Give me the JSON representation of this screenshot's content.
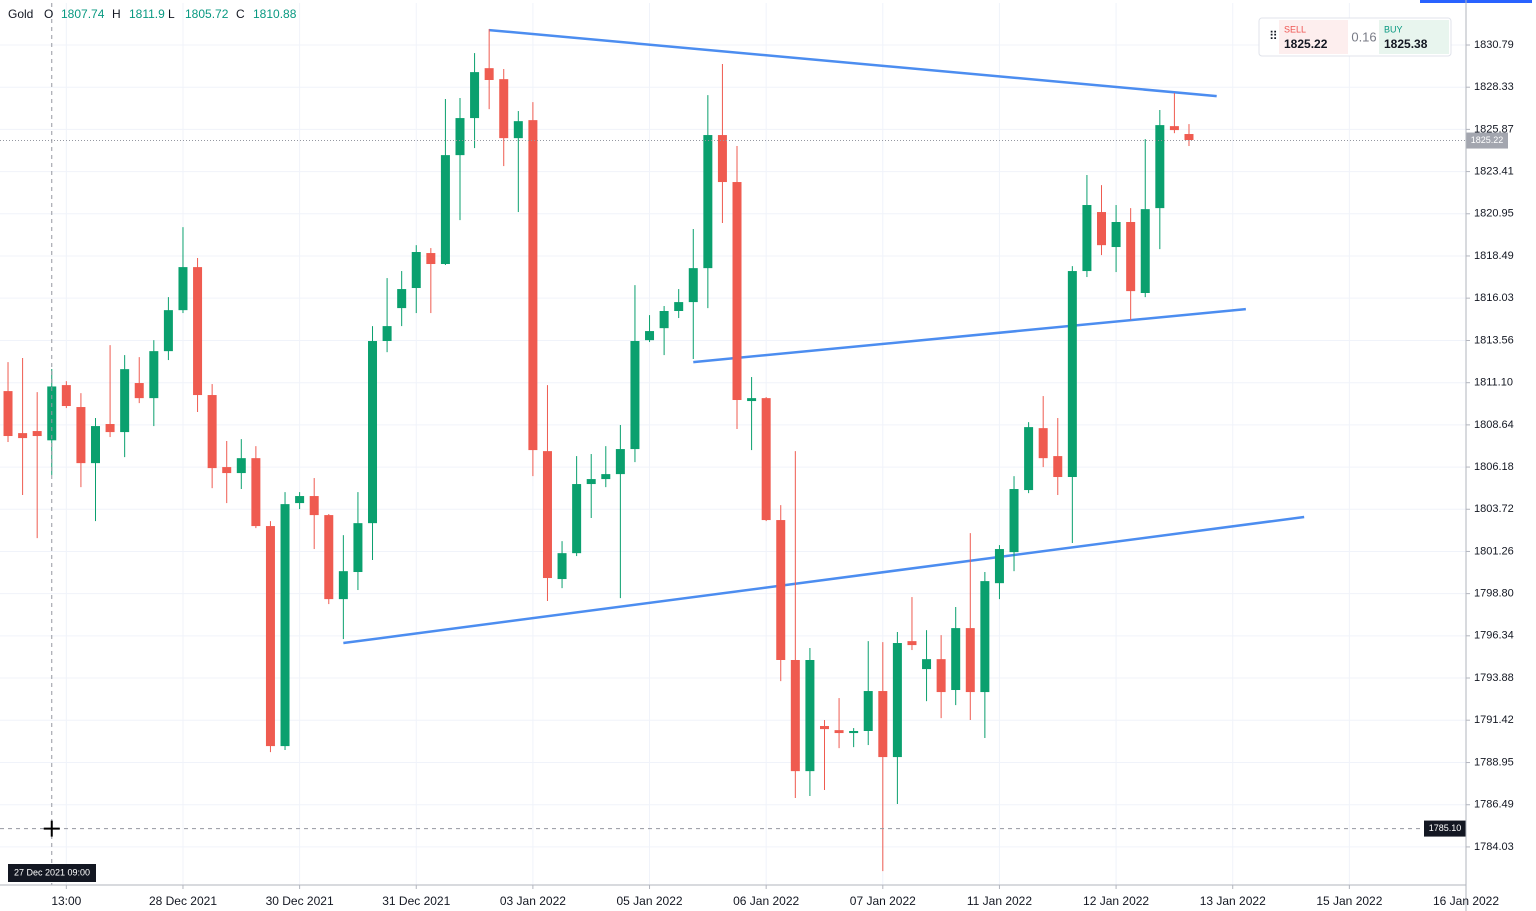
{
  "chart_data": {
    "type": "candlestick",
    "ohlc_legend": {
      "symbol": "Gold",
      "items": [
        {
          "key": "O",
          "value": 1807.74
        },
        {
          "key": "H",
          "value": 1811.9
        },
        {
          "key": "L",
          "value": 1805.72
        },
        {
          "key": "C",
          "value": 1810.88
        }
      ]
    },
    "open": [
      1810.61,
      1808.16,
      1808.28,
      1807.74,
      1810.96,
      1809.68,
      1806.41,
      1808.69,
      1808.22,
      1811.08,
      1810.2,
      1812.94,
      1815.33,
      1817.84,
      1810.38,
      1806.18,
      1805.83,
      1806.7,
      1802.74,
      1789.91,
      1804.08,
      1804.49,
      1803.38,
      1798.48,
      1800.06,
      1802.91,
      1813.53,
      1815.45,
      1816.62,
      1818.66,
      1818.02,
      1824.37,
      1826.53,
      1829.44,
      1828.8,
      1825.36,
      1826.41,
      1807.11,
      1799.65,
      1801.16,
      1805.19,
      1805.48,
      1805.77,
      1807.23,
      1813.58,
      1814.28,
      1815.28,
      1815.8,
      1817.78,
      1825.54,
      1822.8,
      1810.03,
      1810.2,
      1803.09,
      1794.93,
      1788.45,
      1791.08,
      1790.84,
      1790.67,
      1790.79,
      1793.12,
      1789.27,
      1796.03,
      1794.4,
      1794.98,
      1793.18,
      1796.79,
      1793.06,
      1799.41,
      1801.22,
      1804.84,
      1808.45,
      1806.82,
      1805.6,
      1817.61,
      1821.05,
      1819.01,
      1820.47,
      1816.33,
      1821.28,
      1826.06,
      1825.6
    ],
    "high": [
      1812.3,
      1812.54,
      1810.55,
      1811.9,
      1811.19,
      1810.49,
      1809.04,
      1813.29,
      1812.71,
      1812.59,
      1813.58,
      1816.09,
      1820.17,
      1818.37,
      1811.02,
      1807.7,
      1807.81,
      1807.4,
      1803.03,
      1804.72,
      1804.72,
      1805.54,
      1803.44,
      1802.21,
      1804.72,
      1814.4,
      1817.2,
      1817.61,
      1819.12,
      1818.95,
      1827.64,
      1827.7,
      1830.32,
      1831.72,
      1829.39,
      1826.94,
      1827.46,
      1810.96,
      1801.86,
      1806.82,
      1806.94,
      1807.4,
      1808.63,
      1816.79,
      1815.04,
      1815.57,
      1816.56,
      1820.06,
      1827.87,
      1829.68,
      1824.9,
      1811.43,
      1810.26,
      1803.96,
      1807.11,
      1795.63,
      1791.43,
      1792.71,
      1790.96,
      1796.03,
      1795.97,
      1796.56,
      1798.6,
      1796.67,
      1796.38,
      1798.02,
      1802.33,
      1800.06,
      1801.63,
      1805.65,
      1808.8,
      1810.32,
      1809.04,
      1817.9,
      1823.21,
      1822.62,
      1821.46,
      1821.28,
      1825.3,
      1827.0,
      1827.99,
      1826.18
    ],
    "low": [
      1807.64,
      1804.55,
      1802.04,
      1805.72,
      1809.62,
      1805.01,
      1803.03,
      1807.93,
      1806.76,
      1809.91,
      1808.57,
      1812.42,
      1815.16,
      1809.39,
      1804.95,
      1804.08,
      1804.9,
      1802.62,
      1789.56,
      1789.68,
      1803.73,
      1801.4,
      1798.19,
      1796.15,
      1799.01,
      1800.76,
      1812.88,
      1814.4,
      1815.16,
      1815.16,
      1817.96,
      1820.58,
      1824.78,
      1827.05,
      1823.73,
      1821.05,
      1805.65,
      1798.37,
      1799.12,
      1800.99,
      1803.21,
      1805.01,
      1798.54,
      1806.47,
      1813.47,
      1812.71,
      1814.87,
      1812.48,
      1815.45,
      1820.41,
      1808.4,
      1807.17,
      1803.03,
      1793.7,
      1786.88,
      1787.0,
      1787.35,
      1789.79,
      1789.85,
      1789.97,
      1782.62,
      1786.53,
      1795.51,
      1792.53,
      1791.54,
      1792.3,
      1791.43,
      1790.38,
      1798.48,
      1800.11,
      1804.66,
      1806.18,
      1804.55,
      1801.75,
      1817.26,
      1818.54,
      1817.55,
      1814.75,
      1816.09,
      1818.89,
      1825.65,
      1824.9
    ],
    "close": [
      1807.99,
      1807.87,
      1807.99,
      1810.88,
      1809.74,
      1806.41,
      1808.57,
      1808.22,
      1811.89,
      1810.2,
      1812.94,
      1815.33,
      1817.84,
      1810.38,
      1806.12,
      1805.83,
      1806.7,
      1802.74,
      1789.91,
      1804.02,
      1804.49,
      1803.38,
      1798.48,
      1800.11,
      1802.91,
      1813.53,
      1814.4,
      1816.56,
      1818.72,
      1818.02,
      1824.37,
      1826.53,
      1829.21,
      1828.75,
      1825.36,
      1826.35,
      1807.17,
      1799.71,
      1801.16,
      1805.19,
      1805.48,
      1805.77,
      1807.23,
      1813.53,
      1814.11,
      1815.28,
      1815.8,
      1817.78,
      1825.54,
      1822.8,
      1810.09,
      1810.2,
      1803.09,
      1794.93,
      1788.45,
      1794.93,
      1790.9,
      1790.67,
      1790.79,
      1793.12,
      1789.27,
      1795.92,
      1795.8,
      1794.98,
      1793.06,
      1796.79,
      1793.06,
      1799.53,
      1801.4,
      1804.9,
      1808.51,
      1806.7,
      1805.6,
      1817.61,
      1821.46,
      1819.12,
      1820.47,
      1816.44,
      1821.22,
      1826.12,
      1825.83,
      1825.25
    ],
    "up_color": "#0aa06e",
    "down_color": "#ef5b50",
    "ylim": [
      1781.81,
      1833.24
    ],
    "yticks": [
      1784.03,
      1786.49,
      1788.95,
      1791.42,
      1793.88,
      1796.34,
      {
        "value": 1798.8,
        "label": "1798.80"
      },
      1801.26,
      1803.72,
      1806.18,
      1808.64,
      {
        "value": 1811.1,
        "label": "1811.10"
      },
      1813.56,
      1816.03,
      1818.49,
      1820.95,
      1823.41,
      1825.87,
      1828.33,
      1830.79
    ],
    "xlim": [
      -0.55,
      100
    ],
    "xticks": [
      {
        "value": 4,
        "label": "13:00"
      },
      {
        "value": 12,
        "label": "28 Dec 2021"
      },
      {
        "value": 20,
        "label": "30 Dec 2021"
      },
      {
        "value": 28,
        "label": "31 Dec 2021"
      },
      {
        "value": 36,
        "label": "03 Jan 2022"
      },
      {
        "value": 44,
        "label": "05 Jan 2022"
      },
      {
        "value": 52,
        "label": "06 Jan 2022"
      },
      {
        "value": 60,
        "label": "07 Jan 2022"
      },
      {
        "value": 68,
        "label": "11 Jan 2022"
      },
      {
        "value": 76,
        "label": "12 Jan 2022"
      },
      {
        "value": 84,
        "label": "13 Jan 2022"
      },
      {
        "value": 92,
        "label": "15 Jan 2022"
      },
      {
        "value": 100,
        "label": "16 Jan 2022"
      }
    ],
    "grid": true,
    "trendline_color": "#4c8df0",
    "trendlines": [
      {
        "x": [
          33.0,
          82.9
        ],
        "y": [
          1831.66,
          1827.81
        ]
      },
      {
        "x": [
          47.0,
          84.9
        ],
        "y": [
          1812.3,
          1815.39
        ]
      },
      {
        "x": [
          23.0,
          88.9
        ],
        "y": [
          1795.92,
          1803.27
        ]
      }
    ],
    "last_price": 1825.22,
    "crosshair": {
      "x": 3,
      "time_label": "27 Dec 2021 09:00",
      "price": {
        "value": 1785.1,
        "label": "1785.10"
      }
    },
    "trade_panel": {
      "sell_label": "SELL",
      "sell": 1825.22,
      "spread": 0.16,
      "buy_label": "BUY",
      "buy": 1825.38
    }
  }
}
